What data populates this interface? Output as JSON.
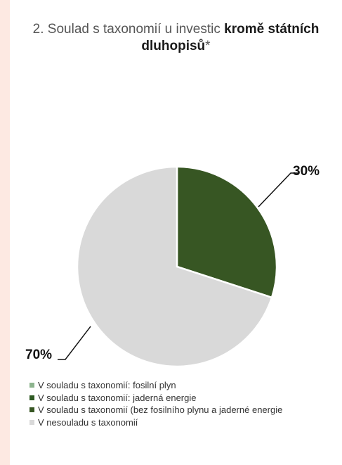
{
  "chart_data": {
    "type": "pie",
    "title_prefix": "2. Soulad s taxonomií u investic ",
    "title_bold": "kromě státních dluhopisů",
    "title_suffix": "*",
    "slices": [
      {
        "label": "V souladu s taxonomií: fosilní plyn",
        "value": 0,
        "color": "#8db48e"
      },
      {
        "label": "V souladu s taxonomií:  jaderná energie",
        "value": 0,
        "color": "#2e5a23"
      },
      {
        "label": "V souladu s taxonomií (bez fosilního plynu a jaderné energie",
        "value": 30,
        "color": "#375623"
      },
      {
        "label": "V nesouladu s taxonomií",
        "value": 70,
        "color": "#d9d9d9"
      }
    ],
    "data_labels": [
      "30%",
      "70%"
    ],
    "legend_position": "bottom-left"
  }
}
